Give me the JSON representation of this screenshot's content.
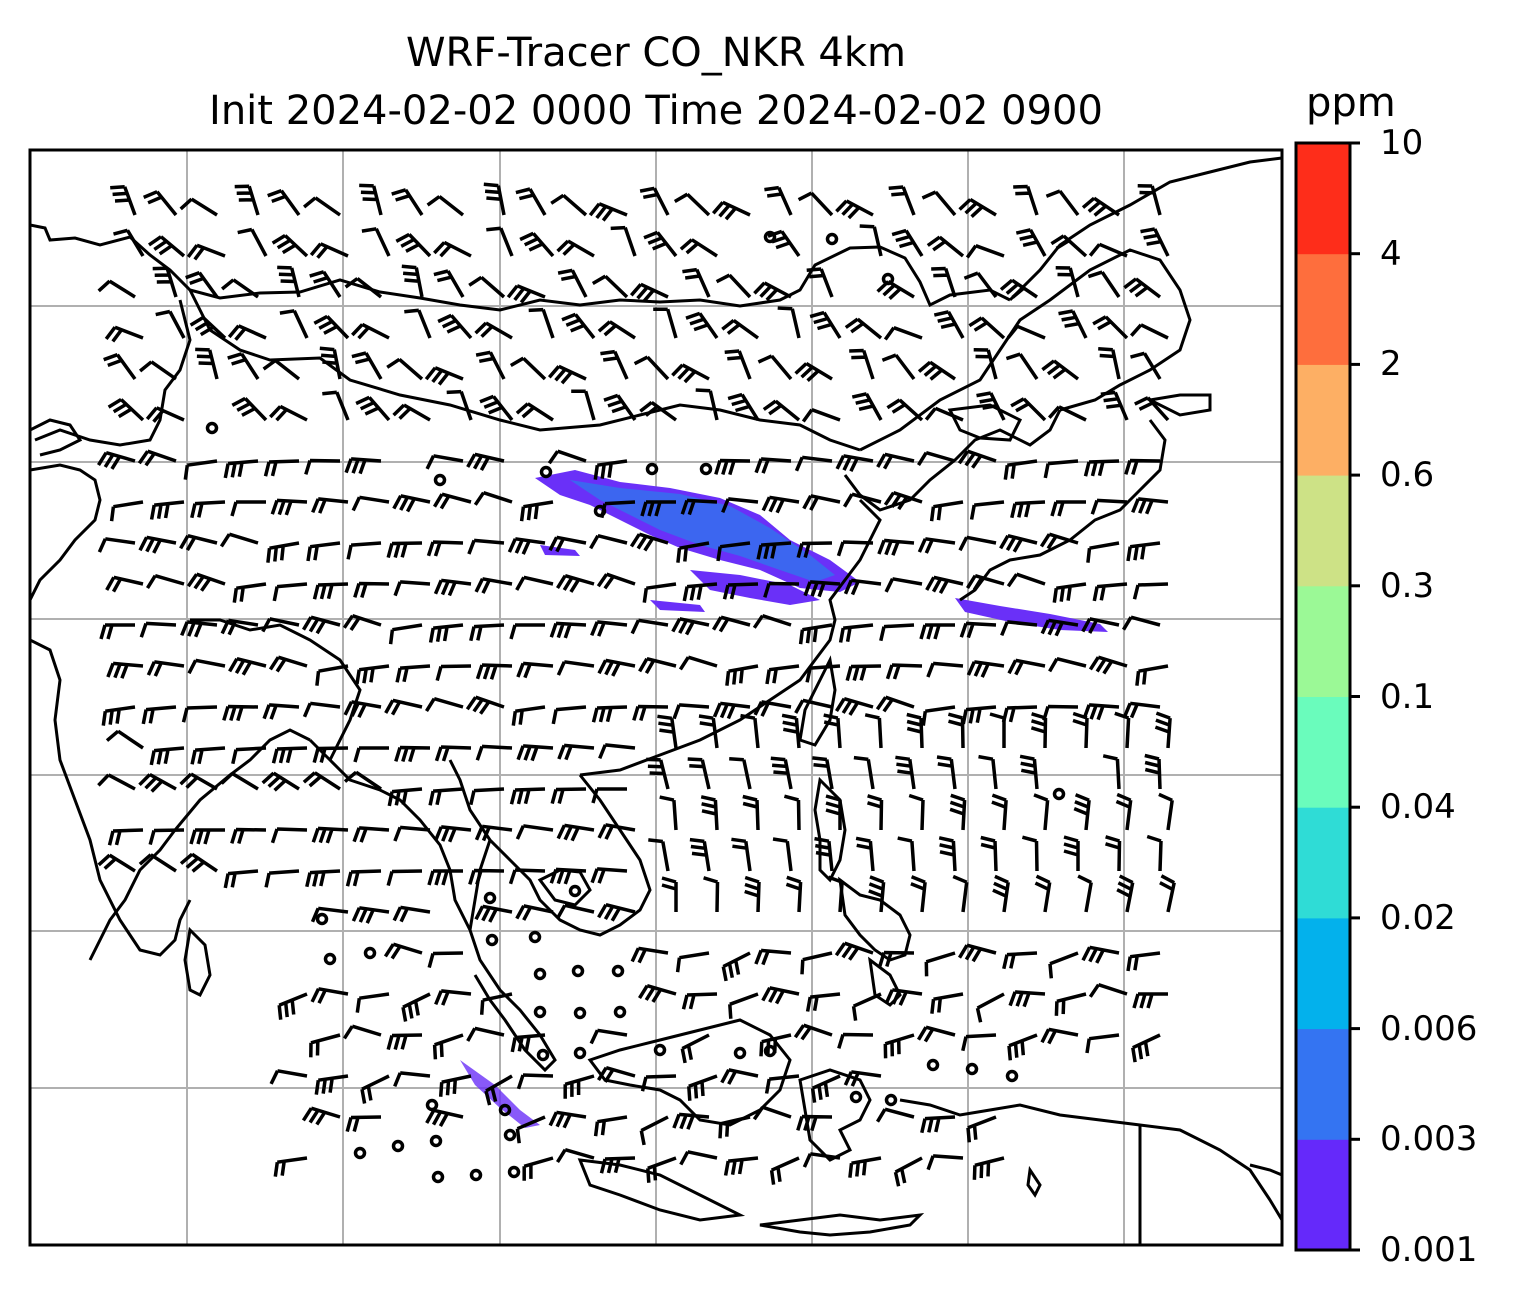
{
  "title": {
    "line1": "WRF-Tracer CO_NKR 4km",
    "line2": "Init 2024-02-02 0000 Time 2024-02-02 0900"
  },
  "colorbar": {
    "unit": "ppm",
    "levels": [
      "0.001",
      "0.003",
      "0.006",
      "0.02",
      "0.04",
      "0.1",
      "0.3",
      "0.6",
      "2",
      "4",
      "10"
    ],
    "colors": [
      "#6529fa",
      "#3474f2",
      "#03b1ec",
      "#2fdcd6",
      "#6afcbc",
      "#9bf996",
      "#cde286",
      "#fdaf64",
      "#fe6e3d",
      "#fe2d1a"
    ]
  },
  "map": {
    "tracer_color_main": "#3c66f0",
    "tracer_color_edge": "#6a30f8",
    "coastline_color": "#000000",
    "grid_color": "#b0b0b0"
  }
}
